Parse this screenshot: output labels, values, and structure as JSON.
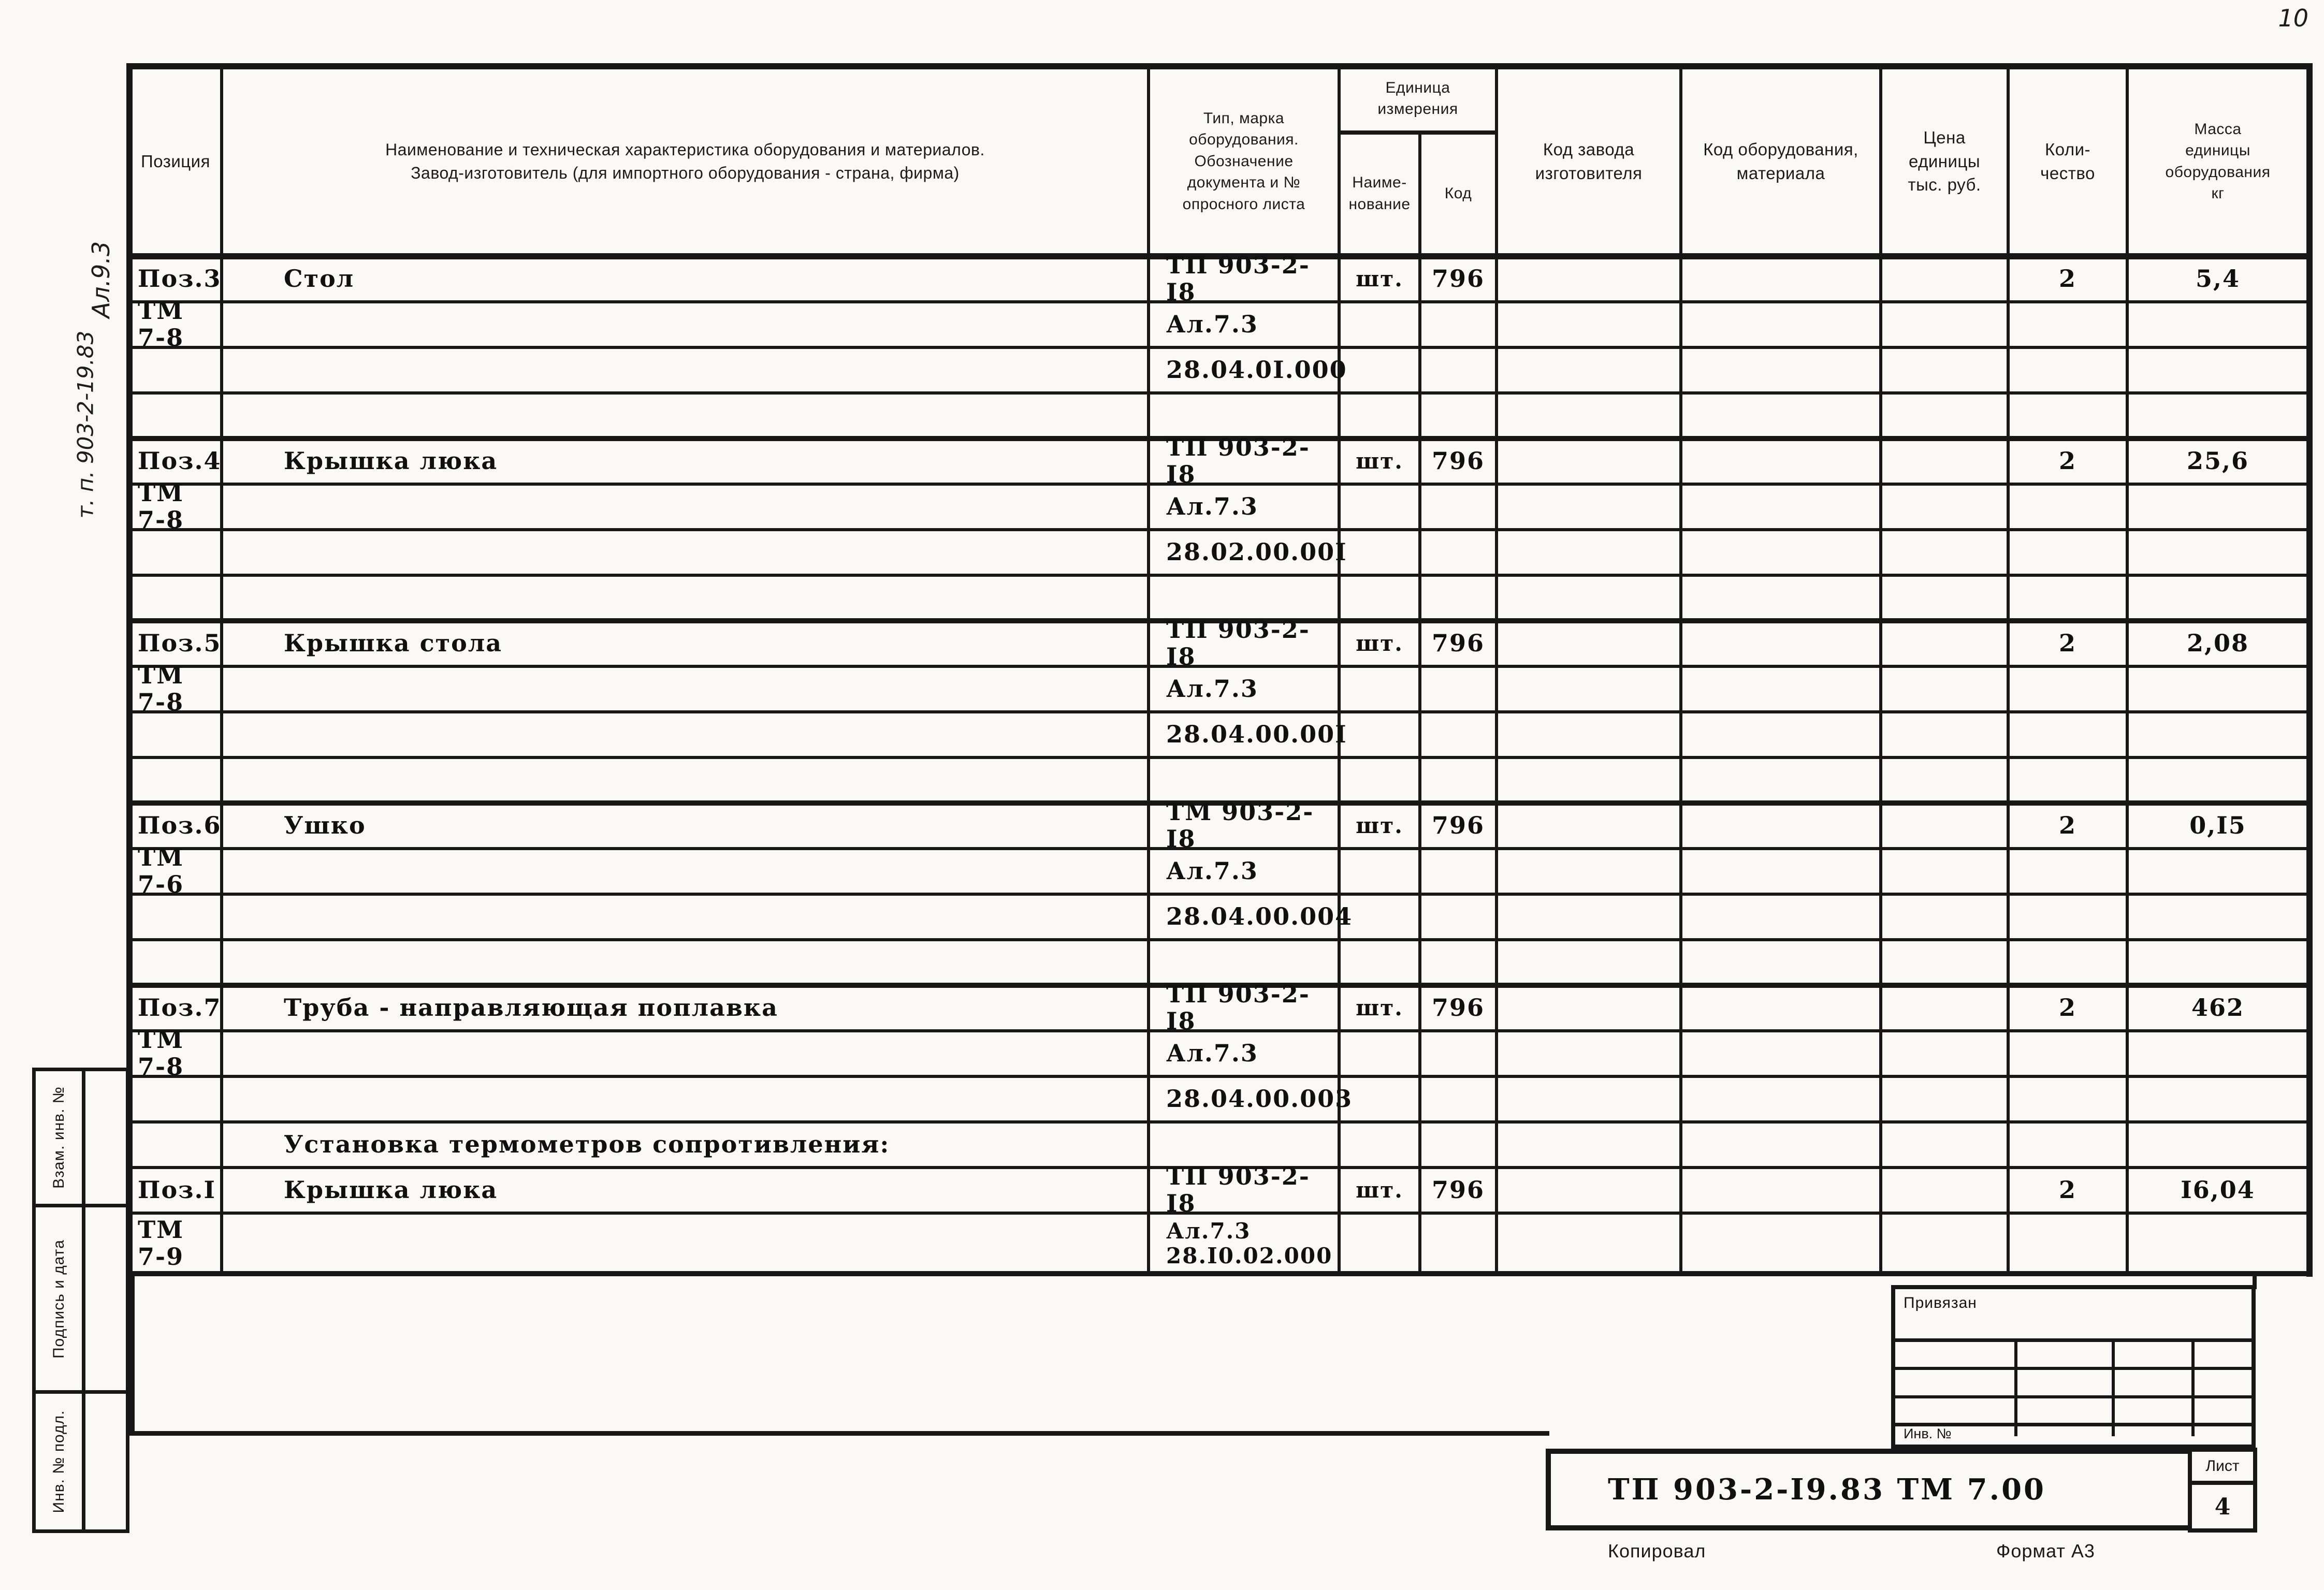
{
  "page": {
    "corner_number": "10",
    "side_note_top": "Ал.9.3",
    "side_note_bottom": "т. п. 903-2-19.83",
    "stamp_labels": [
      "Взам. инв. №",
      "Подпись и дата",
      "Инв. № подл."
    ],
    "footer_copy": "Копировал",
    "footer_format": "Формат А3",
    "title_block": {
      "doc_number": "ТП 903-2-I9.83   ТМ 7.00",
      "privyazan": "Привязан",
      "inv": "Инв. №",
      "sheet_label": "Лист",
      "sheet_number": "4"
    }
  },
  "table": {
    "header": {
      "position": "Позиция",
      "name": "Наименование и техническая характеристика оборудования и материалов.\nЗавод-изготовитель (для импортного оборудования - страна, фирма)",
      "type_mark": "Тип, марка\nоборудования.\nОбозначение\nдокумента и №\nопросного листа",
      "unit_group": "Единица\nизмерения",
      "unit_name": "Наиме-\nнование",
      "unit_code": "Код",
      "factory_code": "Код завода\nизготовителя",
      "equipment_code": "Код оборудования,\nматериала",
      "price": "Цена\nединицы\nтыс. руб.",
      "quantity": "Коли-\nчество",
      "mass": "Масса\nединицы\nоборудования\nкг"
    },
    "rows": [
      {
        "pos": "Поз.3",
        "name": "Стол",
        "doc": "ТП 903-2-I8",
        "unit": "шт.",
        "code": "796",
        "qty": "2",
        "mass": "5,4"
      },
      {
        "pos": "ТМ 7-8",
        "doc": "Ал.7.3"
      },
      {
        "doc": "28.04.0I.000"
      },
      {},
      {
        "pos": "Поз.4",
        "name": "Крышка люка",
        "doc": "ТП 903-2-I8",
        "unit": "шт.",
        "code": "796",
        "qty": "2",
        "mass": "25,6"
      },
      {
        "pos": "ТМ 7-8",
        "doc": "Ал.7.3"
      },
      {
        "doc": "28.02.00.00I"
      },
      {},
      {
        "pos": "Поз.5",
        "name": "Крышка стола",
        "doc": "ТП 903-2-I8",
        "unit": "шт.",
        "code": "796",
        "qty": "2",
        "mass": "2,08"
      },
      {
        "pos": "ТМ 7-8",
        "doc": "Ал.7.3"
      },
      {
        "doc": "28.04.00.00I"
      },
      {},
      {
        "pos": "Поз.6",
        "name": "Ушко",
        "doc": "ТМ 903-2-I8",
        "unit": "шт.",
        "code": "796",
        "qty": "2",
        "mass": "0,I5"
      },
      {
        "pos": "ТМ 7-6",
        "doc": "Ал.7.3"
      },
      {
        "doc": "28.04.00.004"
      },
      {},
      {
        "pos": "Поз.7",
        "name": "Труба - направляющая поплавка",
        "doc": "ТП 903-2-I8",
        "unit": "шт.",
        "code": "796",
        "qty": "2",
        "mass": "462"
      },
      {
        "pos": "ТМ 7-8",
        "doc": "Ал.7.3"
      },
      {
        "doc": "28.04.00.003"
      },
      {
        "name": "Установка термометров сопротивления:"
      },
      {
        "pos": "Поз.I",
        "name": "Крышка люка",
        "doc": "ТП 903-2-I8",
        "unit": "шт.",
        "code": "796",
        "qty": "2",
        "mass": "I6,04"
      },
      {
        "pos": "ТМ 7-9",
        "doc": "Ал.7.3\n28.I0.02.000"
      }
    ]
  }
}
